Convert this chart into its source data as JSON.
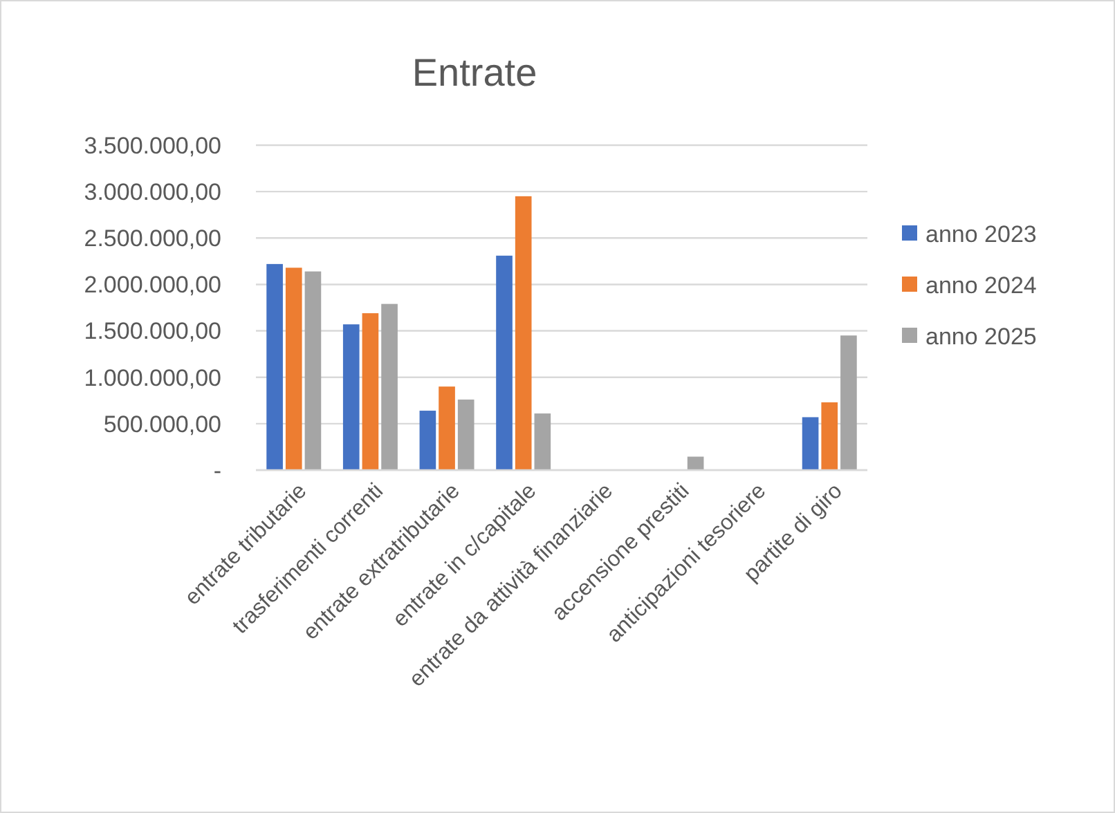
{
  "chart_data": {
    "type": "bar",
    "title": "Entrate",
    "categories": [
      "entrate tributarie",
      "trasferimenti correnti",
      "entrate extratributarie",
      "entrate in c/capitale",
      "entrate da attività finanziarie",
      "accensione prestiti",
      "anticipazioni tesoriere",
      "partite di giro"
    ],
    "series": [
      {
        "name": "anno 2023",
        "color": "#4472c4",
        "values": [
          2220000,
          1570000,
          640000,
          2310000,
          0,
          0,
          0,
          570000
        ]
      },
      {
        "name": "anno 2024",
        "color": "#ed7d31",
        "values": [
          2180000,
          1690000,
          900000,
          2950000,
          0,
          0,
          0,
          730000
        ]
      },
      {
        "name": "anno 2025",
        "color": "#a5a5a5",
        "values": [
          2140000,
          1790000,
          760000,
          610000,
          0,
          145000,
          0,
          1450000
        ]
      }
    ],
    "ylim": [
      0,
      3500000
    ],
    "yticks": [
      {
        "value": 0,
        "label": "-"
      },
      {
        "value": 500000,
        "label": "500.000,00"
      },
      {
        "value": 1000000,
        "label": "1.000.000,00"
      },
      {
        "value": 1500000,
        "label": "1.500.000,00"
      },
      {
        "value": 2000000,
        "label": "2.000.000,00"
      },
      {
        "value": 2500000,
        "label": "2.500.000,00"
      },
      {
        "value": 3000000,
        "label": "3.000.000,00"
      },
      {
        "value": 3500000,
        "label": "3.500.000,00"
      }
    ],
    "grid": "y",
    "legend": "right"
  }
}
